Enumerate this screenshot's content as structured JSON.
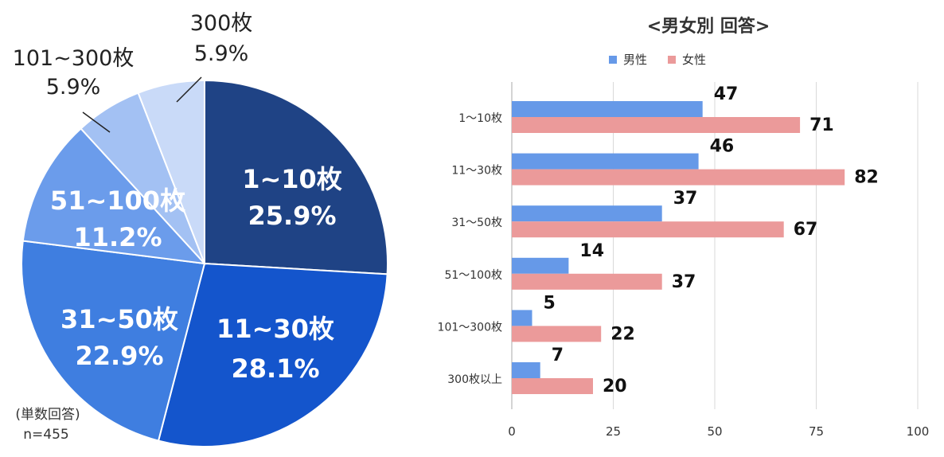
{
  "colors": {
    "pie": [
      "#1f4385",
      "#1455cc",
      "#3f7ee0",
      "#6b9ceb",
      "#a3c1f3",
      "#c9daf8"
    ],
    "male": "#6699e8",
    "female": "#eb9a9a",
    "grid": "#d9d9d9"
  },
  "chart_data": [
    {
      "type": "pie",
      "slices": [
        {
          "label": "1~10枚",
          "pct_text": "25.9%",
          "value": 25.9
        },
        {
          "label": "11~30枚",
          "pct_text": "28.1%",
          "value": 28.1
        },
        {
          "label": "31~50枚",
          "pct_text": "22.9%",
          "value": 22.9
        },
        {
          "label": "51~100枚",
          "pct_text": "11.2%",
          "value": 11.2
        },
        {
          "label": "101~300枚",
          "pct_text": "5.9%",
          "value": 5.9
        },
        {
          "label": "300枚",
          "pct_text": "5.9%",
          "value": 5.9
        }
      ],
      "note": "(単数回答)",
      "n": "n=455"
    },
    {
      "type": "bar",
      "orientation": "horizontal",
      "title": "<男女別 回答>",
      "categories": [
        "1～10枚",
        "11～30枚",
        "31～50枚",
        "51～100枚",
        "101～300枚",
        "300枚以上"
      ],
      "series": [
        {
          "name": "男性",
          "values": [
            47,
            46,
            37,
            14,
            5,
            7
          ]
        },
        {
          "name": "女性",
          "values": [
            71,
            82,
            67,
            37,
            22,
            20
          ]
        }
      ],
      "xlim": [
        0,
        100
      ],
      "ticks": [
        0,
        25,
        50,
        75,
        100
      ],
      "legend": "top",
      "grid": true
    }
  ]
}
